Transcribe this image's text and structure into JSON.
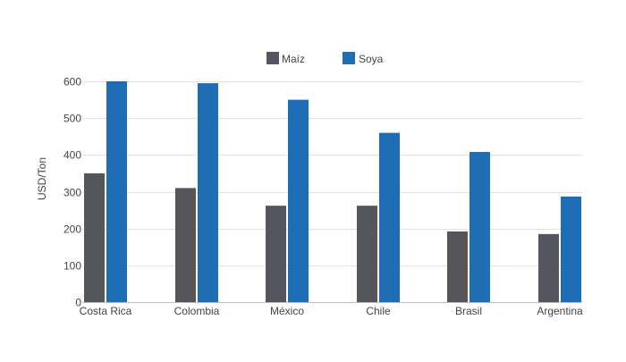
{
  "chart_data": {
    "type": "bar",
    "title": "",
    "xlabel": "",
    "ylabel": "USD/Ton",
    "ylim": [
      0,
      600
    ],
    "yticks": [
      0,
      100,
      200,
      300,
      400,
      500,
      600
    ],
    "grid": true,
    "legend_position": "top-center",
    "categories": [
      "Costa Rica",
      "Colombia",
      "México",
      "Chile",
      "Brasil",
      "Argentina"
    ],
    "series": [
      {
        "name": "Maíz",
        "color": "#54565b",
        "values": [
          350,
          310,
          262,
          262,
          192,
          185
        ]
      },
      {
        "name": "Soya",
        "color": "#1f6eb5",
        "values": [
          600,
          595,
          550,
          460,
          408,
          287
        ]
      }
    ]
  }
}
